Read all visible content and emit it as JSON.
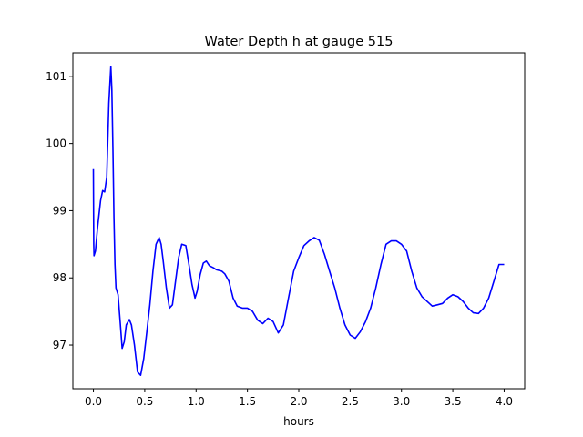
{
  "chart_data": {
    "type": "line",
    "title": "Water Depth h at gauge 515",
    "xlabel": "hours",
    "ylabel": "",
    "xlim": [
      -0.2,
      4.2
    ],
    "ylim": [
      96.35,
      101.35
    ],
    "xticks": [
      0.0,
      0.5,
      1.0,
      1.5,
      2.0,
      2.5,
      3.0,
      3.5,
      4.0
    ],
    "xtick_labels": [
      "0.0",
      "0.5",
      "1.0",
      "1.5",
      "2.0",
      "2.5",
      "3.0",
      "3.5",
      "4.0"
    ],
    "yticks": [
      97,
      98,
      99,
      100,
      101
    ],
    "ytick_labels": [
      "97",
      "98",
      "99",
      "100",
      "101"
    ],
    "grid": false,
    "series": [
      {
        "color": "#0000ff",
        "x": [
          0.0,
          0.003,
          0.006,
          0.02,
          0.04,
          0.07,
          0.09,
          0.11,
          0.13,
          0.15,
          0.17,
          0.18,
          0.19,
          0.2,
          0.21,
          0.22,
          0.24,
          0.26,
          0.28,
          0.3,
          0.32,
          0.35,
          0.37,
          0.4,
          0.43,
          0.46,
          0.49,
          0.52,
          0.55,
          0.58,
          0.61,
          0.64,
          0.66,
          0.68,
          0.71,
          0.74,
          0.77,
          0.8,
          0.83,
          0.86,
          0.9,
          0.93,
          0.96,
          0.99,
          1.01,
          1.04,
          1.07,
          1.1,
          1.13,
          1.17,
          1.2,
          1.25,
          1.28,
          1.32,
          1.36,
          1.4,
          1.45,
          1.5,
          1.55,
          1.6,
          1.65,
          1.7,
          1.75,
          1.8,
          1.85,
          1.9,
          1.95,
          2.0,
          2.05,
          2.1,
          2.15,
          2.2,
          2.25,
          2.3,
          2.35,
          2.4,
          2.45,
          2.5,
          2.55,
          2.6,
          2.65,
          2.7,
          2.75,
          2.8,
          2.85,
          2.9,
          2.95,
          3.0,
          3.05,
          3.1,
          3.15,
          3.2,
          3.25,
          3.3,
          3.35,
          3.4,
          3.45,
          3.5,
          3.55,
          3.6,
          3.65,
          3.7,
          3.75,
          3.8,
          3.85,
          3.9,
          3.95,
          4.0
        ],
        "y": [
          99.62,
          98.5,
          98.33,
          98.4,
          98.75,
          99.15,
          99.3,
          99.28,
          99.5,
          100.6,
          101.15,
          100.8,
          99.9,
          98.9,
          98.2,
          97.85,
          97.75,
          97.35,
          96.95,
          97.05,
          97.3,
          97.38,
          97.3,
          97.0,
          96.6,
          96.55,
          96.8,
          97.2,
          97.6,
          98.1,
          98.5,
          98.6,
          98.5,
          98.25,
          97.85,
          97.55,
          97.6,
          97.95,
          98.3,
          98.5,
          98.48,
          98.2,
          97.9,
          97.7,
          97.8,
          98.05,
          98.22,
          98.25,
          98.18,
          98.15,
          98.12,
          98.1,
          98.06,
          97.95,
          97.7,
          97.58,
          97.55,
          97.55,
          97.5,
          97.37,
          97.32,
          97.4,
          97.35,
          97.18,
          97.3,
          97.7,
          98.1,
          98.3,
          98.48,
          98.55,
          98.6,
          98.56,
          98.35,
          98.1,
          97.85,
          97.55,
          97.3,
          97.15,
          97.1,
          97.2,
          97.35,
          97.55,
          97.85,
          98.2,
          98.5,
          98.55,
          98.55,
          98.5,
          98.4,
          98.1,
          97.85,
          97.72,
          97.65,
          97.58,
          97.6,
          97.62,
          97.7,
          97.75,
          97.72,
          97.65,
          97.55,
          97.48,
          97.47,
          97.55,
          97.7,
          97.95,
          98.2,
          98.2
        ]
      }
    ]
  }
}
